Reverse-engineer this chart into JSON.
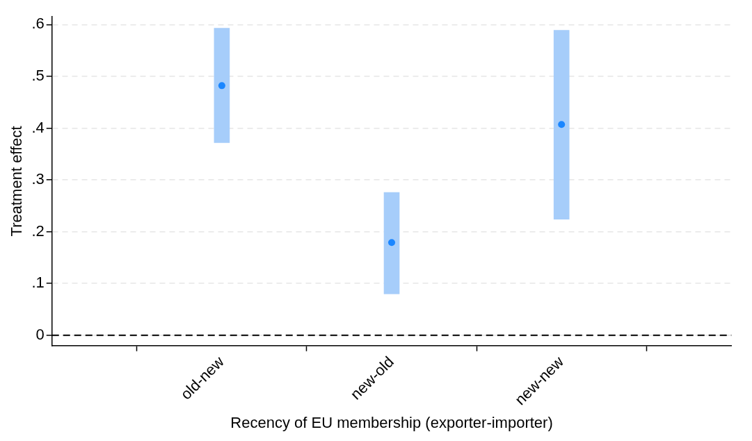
{
  "chart_data": {
    "type": "bar",
    "xlabel": "Recency of EU membership (exporter-importer)",
    "ylabel": "Treatment effect",
    "categories": [
      null,
      "old-new",
      "new-old",
      "new-new",
      null
    ],
    "series": [
      {
        "color": "#a6cdfa",
        "base": [
          null,
          0.372,
          0.08,
          0.224,
          null
        ],
        "values": [
          null,
          0.221,
          0.196,
          0.365,
          null
        ]
      },
      {
        "type": "scatter",
        "color": "#1a86ff",
        "values": [
          null,
          0.482,
          0.179,
          0.407,
          null
        ]
      }
    ],
    "ylim": [
      -0.02,
      0.615
    ],
    "yticks": [
      0,
      {
        "value": 0.1,
        "label": ".1"
      },
      {
        "value": 0.2,
        "label": ".2"
      },
      {
        "value": 0.3,
        "label": ".3"
      },
      {
        "value": 0.4,
        "label": ".4"
      },
      {
        "value": 0.5,
        "label": ".5"
      },
      {
        "value": 0.6,
        "label": ".6"
      }
    ],
    "ref_lines": [
      {
        "axis": "y",
        "value": 0,
        "color": "#000000",
        "line_style": "dashed"
      }
    ],
    "grid": "y",
    "legend": false,
    "marker": "circle"
  }
}
